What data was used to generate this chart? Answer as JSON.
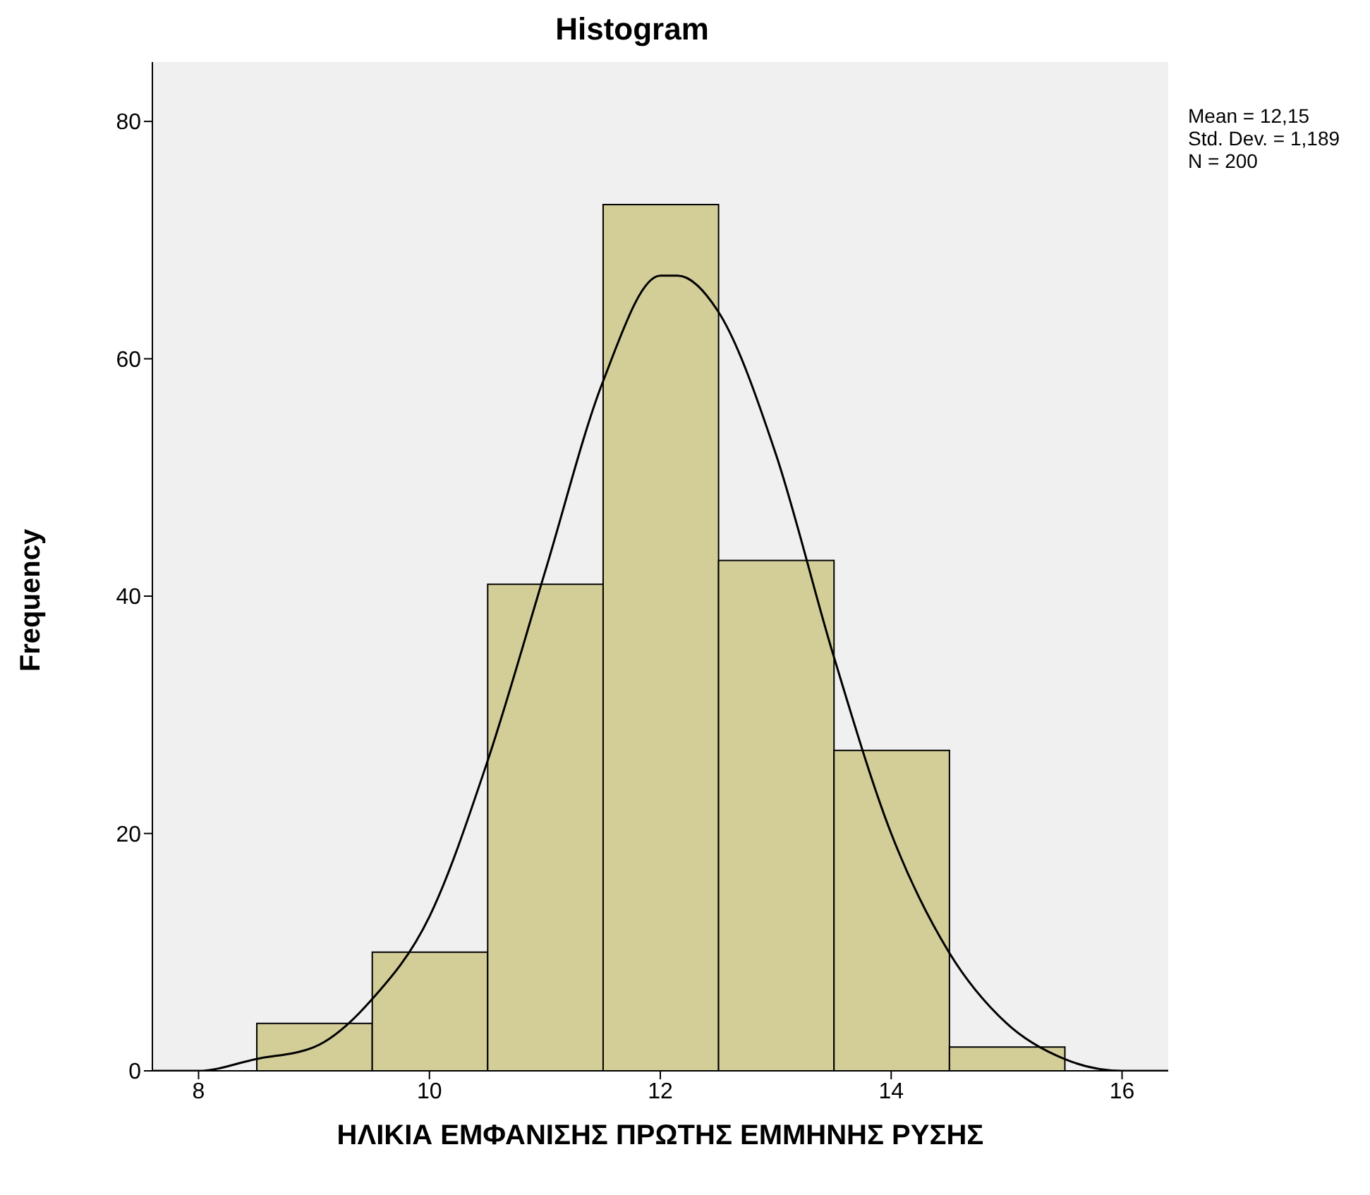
{
  "chart_data": {
    "type": "histogram",
    "title": "Histogram",
    "xlabel": "ΗΛΙΚΙΑ ΕΜΦΑΝΙΣΗΣ ΠΡΩΤΗΣ ΕΜΜΗΝΗΣ ΡΥΣΗΣ",
    "ylabel": "Frequency",
    "annotations": [
      "Mean = 12,15",
      "Std. Dev. = 1,189",
      "N = 200"
    ],
    "series": [
      {
        "bins": [
          8.5,
          9.5,
          10.5,
          11.5,
          12.5,
          13.5,
          14.5,
          15.5
        ],
        "values": [
          4,
          10,
          41,
          73,
          43,
          27,
          2
        ],
        "color": "#d3ce98"
      },
      {
        "type": "line",
        "x": [
          7.6,
          8,
          8.5,
          9,
          9.5,
          10,
          10.5,
          11,
          11.5,
          12,
          12.15,
          12.5,
          13,
          13.5,
          14,
          14.5,
          15,
          15.5,
          16,
          16.4
        ],
        "values": [
          0,
          0,
          1,
          2,
          6,
          13,
          26,
          42,
          58,
          67,
          67,
          64,
          52,
          35,
          20,
          10,
          4,
          1,
          0,
          0
        ],
        "color": "#000000"
      }
    ],
    "xlim": [
      7.6,
      16.4
    ],
    "xticks": [
      8,
      10,
      12,
      14,
      16
    ],
    "ylim": [
      0,
      85
    ],
    "yticks": [
      0,
      20,
      40,
      60,
      80
    ],
    "grid": false,
    "marker": "none",
    "line_style": "solid"
  }
}
